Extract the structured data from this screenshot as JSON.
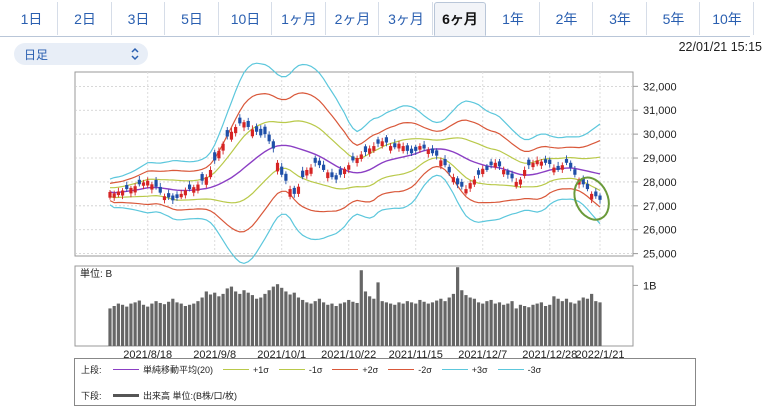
{
  "tabs": [
    {
      "label": "1日",
      "active": false
    },
    {
      "label": "2日",
      "active": false
    },
    {
      "label": "3日",
      "active": false
    },
    {
      "label": "5日",
      "active": false
    },
    {
      "label": "10日",
      "active": false
    },
    {
      "label": "1ヶ月",
      "active": false
    },
    {
      "label": "2ヶ月",
      "active": false
    },
    {
      "label": "3ヶ月",
      "active": false
    },
    {
      "label": "6ヶ月",
      "active": true
    },
    {
      "label": "1年",
      "active": false
    },
    {
      "label": "2年",
      "active": false
    },
    {
      "label": "3年",
      "active": false
    },
    {
      "label": "5年",
      "active": false
    },
    {
      "label": "10年",
      "active": false
    }
  ],
  "period_select": {
    "value": "日足"
  },
  "timestamp": "22/01/21 15:15",
  "legend": {
    "upper_label": "上段:",
    "lower_label": "下段:",
    "upper_items": [
      {
        "label": "単純移動平均(20)",
        "color": "#8b3fc4"
      },
      {
        "label": "+1σ",
        "color": "#b9c94a"
      },
      {
        "label": "-1σ",
        "color": "#b9c94a"
      },
      {
        "label": "+2σ",
        "color": "#d9583a"
      },
      {
        "label": "-2σ",
        "color": "#d9583a"
      },
      {
        "label": "+3σ",
        "color": "#5cc7dc"
      },
      {
        "label": "-3σ",
        "color": "#5cc7dc"
      }
    ],
    "lower_item": {
      "label": "出来高 単位:(B株/口/枚)",
      "color": "#555555"
    }
  },
  "chart_data": {
    "type": "candlestick",
    "price_axis": {
      "ticks": [
        25000,
        26000,
        27000,
        28000,
        29000,
        30000,
        31000,
        32000
      ],
      "ylim": [
        24900,
        32600
      ]
    },
    "x_labels": [
      "2021/8/18",
      "2021/9/8",
      "2021/10/1",
      "2021/10/22",
      "2021/11/15",
      "2021/12/7",
      "2021/12/28",
      "2022/1/21"
    ],
    "volume_axis": {
      "unit_label": "単位: B",
      "ticks": [
        {
          "value": 1,
          "label": "1B"
        }
      ],
      "ylim": [
        0,
        1.32
      ]
    },
    "price_close": [
      27580,
      27520,
      27600,
      27640,
      27700,
      27750,
      27820,
      27900,
      27980,
      28050,
      27900,
      27800,
      27550,
      27400,
      27350,
      27230,
      27330,
      27500,
      27650,
      27700,
      27780,
      27890,
      28050,
      28200,
      28500,
      28900,
      29300,
      29600,
      29900,
      30100,
      30300,
      30450,
      30500,
      30300,
      30200,
      30100,
      29950,
      30000,
      29700,
      29400,
      28800,
      28300,
      28050,
      27700,
      27500,
      27800,
      28200,
      28500,
      28600,
      28800,
      28700,
      28500,
      28400,
      28200,
      28100,
      28300,
      28550,
      28700,
      28900,
      29000,
      29150,
      29250,
      29400,
      29500,
      29600,
      29700,
      29650,
      29500,
      29450,
      29600,
      29500,
      29300,
      29200,
      29300,
      29500,
      29400,
      29350,
      29200,
      29100,
      28900,
      28700,
      28400,
      28200,
      27900,
      27800,
      27700,
      27950,
      28100,
      28300,
      28550,
      28500,
      28700,
      28800,
      28650,
      28500,
      28300,
      28150,
      28000,
      28100,
      28500,
      28700,
      28800,
      28900,
      28850,
      28800,
      28750,
      28600,
      28500,
      28700,
      28800,
      28600,
      28300,
      28100,
      27900,
      27700,
      27500,
      27400,
      27250
    ],
    "candle_bodies": [
      240,
      180,
      150,
      210,
      170,
      230,
      260,
      190,
      140,
      200,
      220,
      280,
      240,
      160,
      180,
      200,
      150,
      140,
      210,
      190,
      230,
      260,
      280,
      320,
      300,
      340,
      310,
      290,
      270,
      330,
      260,
      240,
      220,
      250,
      290,
      230,
      270,
      310,
      280,
      300,
      360,
      340,
      290,
      320,
      250,
      300,
      270,
      230,
      260,
      210,
      190,
      220,
      240,
      200,
      180,
      230,
      220,
      190,
      170,
      210,
      190,
      240,
      220,
      200,
      180,
      200,
      220,
      190,
      170,
      200,
      210,
      230,
      190,
      170,
      150,
      160,
      180,
      200,
      220,
      240,
      260,
      230,
      210,
      250,
      200,
      180,
      230,
      210,
      190,
      220,
      170,
      150,
      190,
      210,
      180,
      170,
      200,
      190,
      210,
      250,
      230,
      180,
      160,
      170,
      150,
      180,
      200,
      170,
      190,
      160,
      200,
      230,
      210,
      250,
      220,
      240,
      200,
      180
    ],
    "volume": [
      0.62,
      0.66,
      0.7,
      0.68,
      0.65,
      0.7,
      0.72,
      0.75,
      0.68,
      0.65,
      0.7,
      0.74,
      0.71,
      0.69,
      0.73,
      0.78,
      0.72,
      0.7,
      0.66,
      0.68,
      0.7,
      0.74,
      0.8,
      0.9,
      0.85,
      0.88,
      0.82,
      0.86,
      0.95,
      0.98,
      0.9,
      0.86,
      0.92,
      0.88,
      0.84,
      0.78,
      0.8,
      0.86,
      0.92,
      0.98,
      1.02,
      0.96,
      0.9,
      0.85,
      0.88,
      0.8,
      0.76,
      0.72,
      0.7,
      0.74,
      0.78,
      0.72,
      0.68,
      0.7,
      0.66,
      0.7,
      0.72,
      0.76,
      0.73,
      0.71,
      1.25,
      0.9,
      0.82,
      0.78,
      1.05,
      0.74,
      0.72,
      0.7,
      0.68,
      0.72,
      0.7,
      0.74,
      0.72,
      0.7,
      0.76,
      0.73,
      0.7,
      0.72,
      0.75,
      0.78,
      0.74,
      0.8,
      0.86,
      1.3,
      0.92,
      0.84,
      0.8,
      0.78,
      0.72,
      0.7,
      0.74,
      0.76,
      0.7,
      0.72,
      0.68,
      0.7,
      0.74,
      0.62,
      0.68,
      0.66,
      0.64,
      0.68,
      0.7,
      0.72,
      0.66,
      0.68,
      0.82,
      0.78,
      0.74,
      0.78,
      0.72,
      0.7,
      0.75,
      0.8,
      0.78,
      0.86,
      0.74,
      0.72
    ]
  }
}
